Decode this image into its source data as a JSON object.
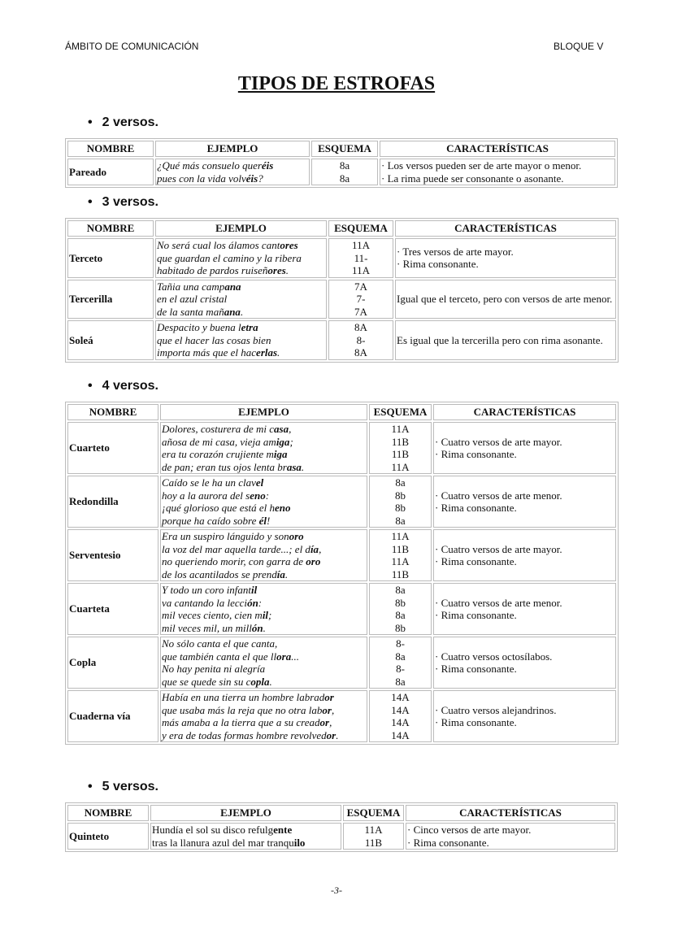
{
  "header": {
    "left": "ÁMBITO DE COMUNICACIÓN",
    "right": "BLOQUE V"
  },
  "title": "TIPOS DE ESTROFAS",
  "columns": [
    "NOMBRE",
    "EJEMPLO",
    "ESQUEMA",
    "CARACTERÍSTICAS"
  ],
  "sections": [
    {
      "heading": "2 versos.",
      "rows": [
        {
          "nombre": "Pareado",
          "italic": true,
          "ejemplo": [
            [
              "¿Qué más consuelo quer",
              "éis",
              ""
            ],
            [
              "pues con la vida volv",
              "éis",
              "?"
            ]
          ],
          "esquema": [
            "8a",
            "8a"
          ],
          "caracteristicas": [
            "· Los versos pueden ser de arte mayor o menor.",
            "· La rima puede ser consonante o asonante."
          ]
        }
      ]
    },
    {
      "heading": "3 versos.",
      "rows": [
        {
          "nombre": "Terceto",
          "italic": true,
          "ejemplo": [
            [
              "No será cual los álamos cant",
              "ores",
              ""
            ],
            [
              "que guardan el camino y la ribera",
              "",
              ""
            ],
            [
              "habitado de pardos ruiseñ",
              "ores",
              "."
            ]
          ],
          "esquema": [
            "11A",
            "11-",
            "11A"
          ],
          "caracteristicas": [
            "· Tres versos de arte mayor.",
            "· Rima consonante."
          ]
        },
        {
          "nombre": "Tercerilla",
          "italic": true,
          "ejemplo": [
            [
              "Tañia una camp",
              "ana",
              ""
            ],
            [
              "en el azul cristal",
              "",
              ""
            ],
            [
              "de la santa mañ",
              "ana",
              "."
            ]
          ],
          "esquema": [
            "7A",
            "7-",
            "7A"
          ],
          "caracteristicas": [
            "Igual que el terceto, pero con versos de arte menor."
          ]
        },
        {
          "nombre": "Soleá",
          "italic": true,
          "ejemplo": [
            [
              "Despacito y buena l",
              "etra",
              ""
            ],
            [
              "que el hacer las cosas bien",
              "",
              ""
            ],
            [
              "importa más que el hac",
              "erlas",
              "."
            ]
          ],
          "esquema": [
            "8A",
            "8-",
            "8A"
          ],
          "caracteristicas": [
            "Es igual que la tercerilla pero con rima asonante."
          ]
        }
      ]
    },
    {
      "heading": "4 versos.",
      "rows": [
        {
          "nombre": "Cuarteto",
          "italic": true,
          "ejemplo": [
            [
              "Dolores, costurera de mi c",
              "asa",
              ","
            ],
            [
              "añosa de mi casa, vieja am",
              "iga",
              ";"
            ],
            [
              "era tu corazón crujiente m",
              "iga",
              ""
            ],
            [
              "de pan; eran tus ojos lenta br",
              "asa",
              "."
            ]
          ],
          "esquema": [
            "11A",
            "11B",
            "11B",
            "11A"
          ],
          "caracteristicas": [
            "· Cuatro versos de arte mayor.",
            "· Rima consonante."
          ]
        },
        {
          "nombre": "Redondilla",
          "italic": true,
          "ejemplo": [
            [
              "Caído se le ha un clav",
              "el",
              ""
            ],
            [
              "hoy a la aurora del s",
              "eno",
              ":"
            ],
            [
              "¡qué glorioso que está el h",
              "eno",
              ""
            ],
            [
              "porque ha caído sobre ",
              "él",
              "!"
            ]
          ],
          "esquema": [
            "8a",
            "8b",
            "8b",
            "8a"
          ],
          "caracteristicas": [
            "· Cuatro versos de arte menor.",
            "· Rima consonante."
          ]
        },
        {
          "nombre": "Serventesio",
          "italic": true,
          "ejemplo": [
            [
              "Era un suspiro lánguido y son",
              "oro",
              ""
            ],
            [
              "la voz del mar aquella tarde...; el d",
              "ía",
              ","
            ],
            [
              "no queriendo morir, con garra de ",
              "oro",
              ""
            ],
            [
              "de los acantilados se prend",
              "ía",
              "."
            ]
          ],
          "esquema": [
            "11A",
            "11B",
            "11A",
            "11B"
          ],
          "caracteristicas": [
            "· Cuatro versos de arte mayor.",
            "· Rima consonante."
          ]
        },
        {
          "nombre": "Cuarteta",
          "italic": true,
          "ejemplo": [
            [
              "Y todo un coro infant",
              "il",
              ""
            ],
            [
              "va cantando la lecci",
              "ón",
              ":"
            ],
            [
              "mil veces ciento, cien m",
              "il",
              ";"
            ],
            [
              "mil veces mil, un mill",
              "ón",
              "."
            ]
          ],
          "esquema": [
            "8a",
            "8b",
            "8a",
            "8b"
          ],
          "caracteristicas": [
            "· Cuatro versos de arte menor.",
            "· Rima consonante."
          ]
        },
        {
          "nombre": "Copla",
          "italic": true,
          "ejemplo": [
            [
              "No sólo canta el que canta,",
              "",
              ""
            ],
            [
              "que también canta el que ll",
              "ora",
              "..."
            ],
            [
              "No hay penita ni alegría",
              "",
              ""
            ],
            [
              "que se quede sin su c",
              "opla",
              "."
            ]
          ],
          "esquema": [
            "8-",
            "8a",
            "8-",
            "8a"
          ],
          "caracteristicas": [
            "· Cuatro versos octosílabos.",
            "· Rima consonante."
          ]
        },
        {
          "nombre": "Cuaderna vía",
          "italic": true,
          "ejemplo": [
            [
              "Había en una tierra un hombre labrad",
              "or",
              ""
            ],
            [
              "que usaba más la reja que no otra lab",
              "or",
              ","
            ],
            [
              "más amaba a la tierra que a su cread",
              "or",
              ","
            ],
            [
              "y era de todas formas hombre revolved",
              "or",
              "."
            ]
          ],
          "esquema": [
            "14A",
            "14A",
            "14A",
            "14A"
          ],
          "caracteristicas": [
            "· Cuatro versos alejandrinos.",
            "· Rima consonante."
          ]
        }
      ]
    },
    {
      "heading": "5 versos.",
      "rows": [
        {
          "nombre": "Quinteto",
          "italic": false,
          "ejemplo": [
            [
              "Hundía el sol su disco refulg",
              "ente",
              ""
            ],
            [
              "tras la llanura azul del mar tranqu",
              "ilo",
              ""
            ]
          ],
          "esquema": [
            "11A",
            "11B"
          ],
          "caracteristicas": [
            "· Cinco versos de arte mayor.",
            "· Rima consonante."
          ]
        }
      ]
    }
  ],
  "footer": "-3-"
}
